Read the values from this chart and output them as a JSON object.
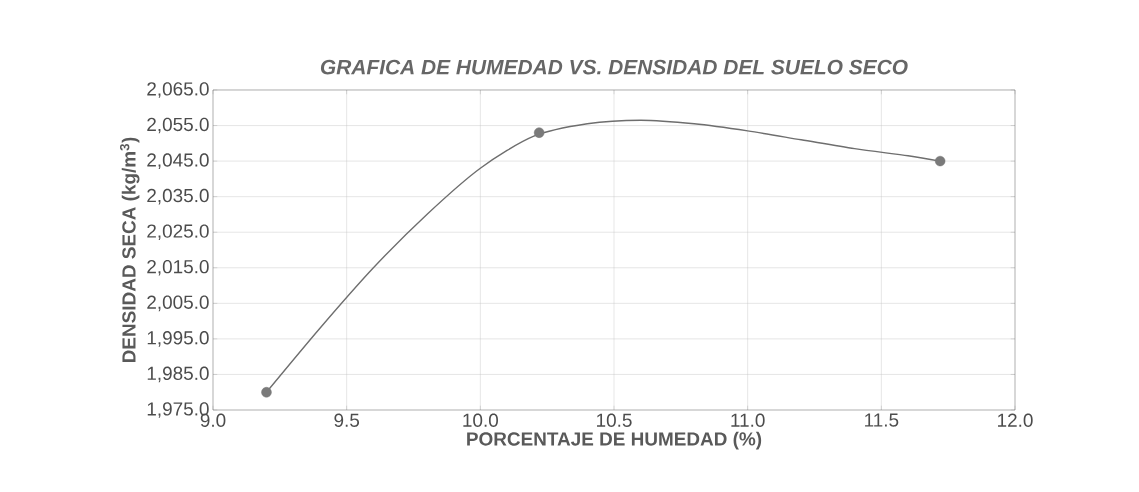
{
  "chart_data": {
    "type": "line",
    "title": "GRAFICA DE HUMEDAD VS. DENSIDAD DEL SUELO SECO",
    "xlabel": "PORCENTAJE  DE HUMEDAD (%)",
    "ylabel": "DENSIDAD SECA (kg/m$^{3}$)",
    "xlim": [
      9.0,
      12.0
    ],
    "ylim": [
      1975.0,
      2065.0
    ],
    "xticks": [
      {
        "value": 9.0,
        "label": "9.0"
      },
      {
        "value": 9.5,
        "label": "9.5"
      },
      {
        "value": 10.0,
        "label": "10.0"
      },
      {
        "value": 10.5,
        "label": "10.5"
      },
      {
        "value": 11.0,
        "label": "11.0"
      },
      {
        "value": 11.5,
        "label": "11.5"
      },
      {
        "value": 12.0,
        "label": "12.0"
      }
    ],
    "yticks": [
      {
        "value": 1975,
        "label": "1,975.0"
      },
      {
        "value": 1985,
        "label": "1,985.0"
      },
      {
        "value": 1995,
        "label": "1,995.0"
      },
      {
        "value": 2005,
        "label": "2,005.0"
      },
      {
        "value": 2015,
        "label": "2,015.0"
      },
      {
        "value": 2025,
        "label": "2,025.0"
      },
      {
        "value": 2035,
        "label": "2,035.0"
      },
      {
        "value": 2045,
        "label": "2,045.0"
      },
      {
        "value": 2055,
        "label": "2,055.0"
      },
      {
        "value": 2065,
        "label": "2,065.0"
      }
    ],
    "grid": true,
    "series": [
      {
        "color": "#6e6e6e",
        "x": [
          9.2,
          9.4,
          9.6,
          9.8,
          10.0,
          10.2,
          10.4,
          10.6,
          10.8,
          11.0,
          11.2,
          11.4,
          11.6,
          11.72
        ],
        "values": [
          1980,
          1998,
          2015,
          2030,
          2043,
          2052,
          2055.5,
          2056.5,
          2055.5,
          2053.5,
          2051,
          2048.5,
          2046.5,
          2045
        ]
      },
      {
        "type": "scatter",
        "color": "#7a7a7a",
        "marker": "circle",
        "x": [
          9.2,
          10.22,
          11.72
        ],
        "values": [
          1980,
          2053,
          2045
        ]
      }
    ]
  }
}
